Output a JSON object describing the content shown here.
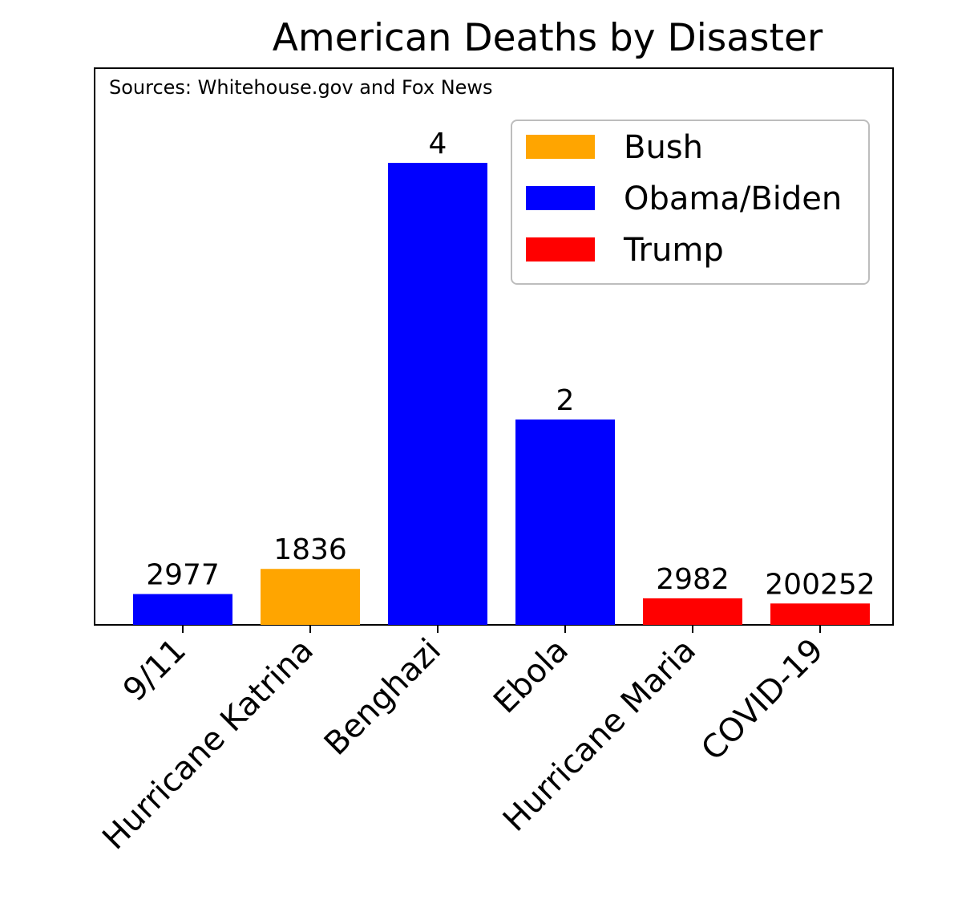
{
  "chart_data": {
    "type": "bar",
    "title": "American Deaths by Disaster",
    "annotation": "Sources: Whitehouse.gov and Fox News",
    "categories": [
      "9/11",
      "Hurricane Katrina",
      "Benghazi",
      "Ebola",
      "Hurricane Maria",
      "COVID-19"
    ],
    "value_labels": [
      "2977",
      "1836",
      "4",
      "2",
      "2982",
      "200252"
    ],
    "bar_heights_relative": [
      0.0667,
      0.1211,
      1.0,
      0.4445,
      0.0575,
      0.0463
    ],
    "bar_groups": [
      "Obama/Biden",
      "Bush",
      "Obama/Biden",
      "Obama/Biden",
      "Trump",
      "Trump"
    ],
    "legend": [
      {
        "name": "Bush",
        "color": "#ffa500"
      },
      {
        "name": "Obama/Biden",
        "color": "#0000ff"
      },
      {
        "name": "Trump",
        "color": "#ff0000"
      }
    ],
    "legend_placement": "top-right",
    "y_axis_visible": false,
    "grid": false
  }
}
